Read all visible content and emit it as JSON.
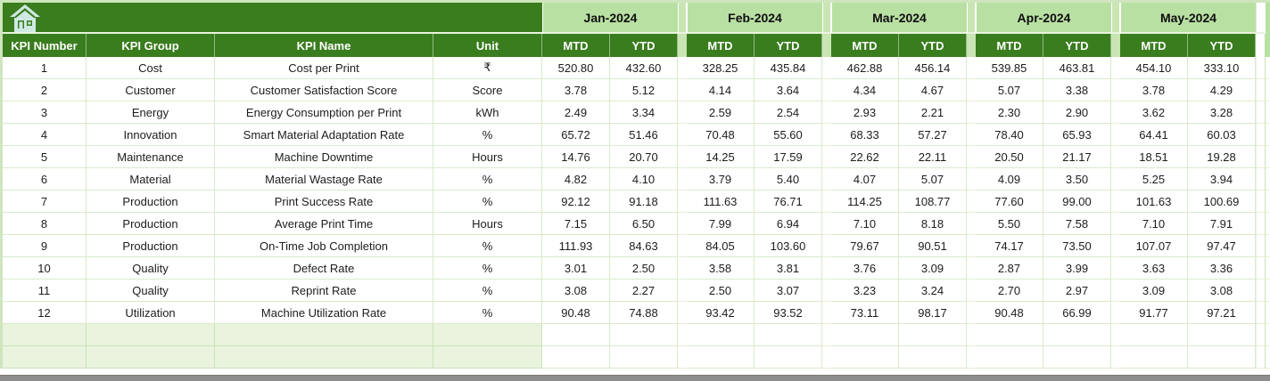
{
  "banner": {
    "home_icon": "home-icon"
  },
  "table": {
    "column_headers": [
      "KPI Number",
      "KPI Group",
      "KPI Name",
      "Unit"
    ],
    "months": [
      "Jan-2024",
      "Feb-2024",
      "Mar-2024",
      "Apr-2024",
      "May-2024"
    ],
    "period_headers": [
      "MTD",
      "YTD"
    ],
    "rows": [
      {
        "kpi_number": "1",
        "kpi_group": "Cost",
        "kpi_name": "Cost per Print",
        "unit": "₹",
        "values": [
          "520.80",
          "432.60",
          "328.25",
          "435.84",
          "462.88",
          "456.14",
          "539.85",
          "463.81",
          "454.10",
          "333.10"
        ]
      },
      {
        "kpi_number": "2",
        "kpi_group": "Customer",
        "kpi_name": "Customer Satisfaction Score",
        "unit": "Score",
        "values": [
          "3.78",
          "5.12",
          "4.14",
          "3.64",
          "4.34",
          "4.67",
          "5.07",
          "3.38",
          "3.78",
          "4.29"
        ]
      },
      {
        "kpi_number": "3",
        "kpi_group": "Energy",
        "kpi_name": "Energy Consumption per Print",
        "unit": "kWh",
        "values": [
          "2.49",
          "3.34",
          "2.59",
          "2.54",
          "2.93",
          "2.21",
          "2.30",
          "2.90",
          "3.62",
          "3.28"
        ]
      },
      {
        "kpi_number": "4",
        "kpi_group": "Innovation",
        "kpi_name": "Smart Material Adaptation Rate",
        "unit": "%",
        "values": [
          "65.72",
          "51.46",
          "70.48",
          "55.60",
          "68.33",
          "57.27",
          "78.40",
          "65.93",
          "64.41",
          "60.03"
        ]
      },
      {
        "kpi_number": "5",
        "kpi_group": "Maintenance",
        "kpi_name": "Machine Downtime",
        "unit": "Hours",
        "values": [
          "14.76",
          "20.70",
          "14.25",
          "17.59",
          "22.62",
          "22.11",
          "20.50",
          "21.17",
          "18.51",
          "19.28"
        ]
      },
      {
        "kpi_number": "6",
        "kpi_group": "Material",
        "kpi_name": "Material Wastage Rate",
        "unit": "%",
        "values": [
          "4.82",
          "4.10",
          "3.79",
          "5.40",
          "4.07",
          "5.07",
          "4.09",
          "3.50",
          "5.25",
          "3.94"
        ]
      },
      {
        "kpi_number": "7",
        "kpi_group": "Production",
        "kpi_name": "Print Success Rate",
        "unit": "%",
        "values": [
          "92.12",
          "91.18",
          "111.63",
          "76.71",
          "114.25",
          "108.77",
          "77.60",
          "99.00",
          "101.63",
          "100.69"
        ]
      },
      {
        "kpi_number": "8",
        "kpi_group": "Production",
        "kpi_name": "Average Print Time",
        "unit": "Hours",
        "values": [
          "7.15",
          "6.50",
          "7.99",
          "6.94",
          "7.10",
          "8.18",
          "5.50",
          "7.58",
          "7.10",
          "7.91"
        ]
      },
      {
        "kpi_number": "9",
        "kpi_group": "Production",
        "kpi_name": "On-Time Job Completion",
        "unit": "%",
        "values": [
          "111.93",
          "84.63",
          "84.05",
          "103.60",
          "79.67",
          "90.51",
          "74.17",
          "73.50",
          "107.07",
          "97.47"
        ]
      },
      {
        "kpi_number": "10",
        "kpi_group": "Quality",
        "kpi_name": "Defect Rate",
        "unit": "%",
        "values": [
          "3.01",
          "2.50",
          "3.58",
          "3.81",
          "3.76",
          "3.09",
          "2.87",
          "3.99",
          "3.63",
          "3.36"
        ]
      },
      {
        "kpi_number": "11",
        "kpi_group": "Quality",
        "kpi_name": "Reprint Rate",
        "unit": "%",
        "values": [
          "3.08",
          "2.27",
          "2.50",
          "3.07",
          "3.23",
          "3.24",
          "2.70",
          "2.97",
          "3.09",
          "3.08"
        ]
      },
      {
        "kpi_number": "12",
        "kpi_group": "Utilization",
        "kpi_name": "Machine Utilization Rate",
        "unit": "%",
        "values": [
          "90.48",
          "74.88",
          "93.42",
          "93.52",
          "73.11",
          "98.17",
          "90.48",
          "66.99",
          "91.77",
          "97.21"
        ]
      }
    ],
    "empty_row_count": 2
  },
  "colors": {
    "header_green": "#3A7D1E",
    "band_green": "#B9E0A3",
    "pale_green": "#E9F3DE",
    "grid_green": "#D9EBC9",
    "scrollbar_gray": "#8E8E8E",
    "icon_mint": "#CFE9E4"
  }
}
